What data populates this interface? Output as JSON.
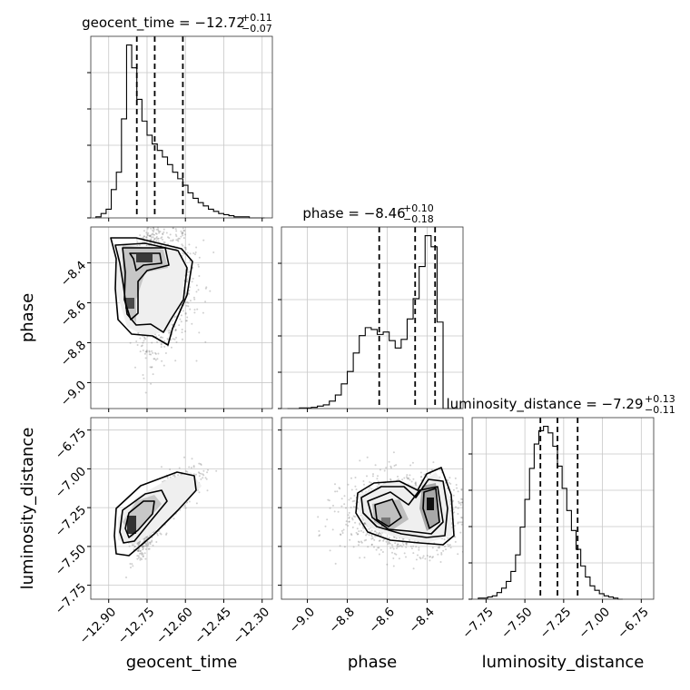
{
  "chart_data": {
    "type": "corner",
    "parameters": [
      "geocent_time",
      "phase",
      "luminosity_distance"
    ],
    "titles": [
      {
        "param": "geocent_time",
        "text": "geocent_time = −12.72",
        "plus": "+0.11",
        "minus": "−0.07"
      },
      {
        "param": "phase",
        "text": "phase = −8.46",
        "plus": "+0.10",
        "minus": "−0.18"
      },
      {
        "param": "luminosity_distance",
        "text": "luminosity_distance = −7.29",
        "plus": "+0.13",
        "minus": "−0.11"
      }
    ],
    "axes": {
      "geocent_time": {
        "range": [
          -12.97,
          -12.26
        ],
        "ticks": [
          -12.9,
          -12.75,
          -12.6,
          -12.45,
          -12.3
        ],
        "tick_labels": [
          "−12.90",
          "−12.75",
          "−12.60",
          "−12.45",
          "−12.30"
        ],
        "label": "geocent_time"
      },
      "phase": {
        "range": [
          -9.13,
          -8.22
        ],
        "ticks": [
          -9.0,
          -8.8,
          -8.6,
          -8.4
        ],
        "tick_labels": [
          "−9.0",
          "−8.8",
          "−8.6",
          "−8.4"
        ],
        "label": "phase"
      },
      "luminosity_distance": {
        "range": [
          -7.84,
          -6.67
        ],
        "ticks": [
          -7.75,
          -7.5,
          -7.25,
          -7.0,
          -6.75
        ],
        "tick_labels": [
          "−7.75",
          "−7.50",
          "−7.25",
          "−7.00",
          "−6.75"
        ],
        "label": "luminosity_distance"
      }
    },
    "quantiles": {
      "geocent_time": [
        -12.79,
        -12.72,
        -12.61
      ],
      "phase": [
        -8.64,
        -8.46,
        -8.36
      ],
      "luminosity_distance": [
        -7.4,
        -7.29,
        -7.16
      ]
    },
    "histograms": {
      "geocent_time": {
        "edges": [
          -12.95,
          -12.93,
          -12.91,
          -12.89,
          -12.87,
          -12.85,
          -12.83,
          -12.81,
          -12.79,
          -12.77,
          -12.75,
          -12.73,
          -12.71,
          -12.69,
          -12.67,
          -12.65,
          -12.63,
          -12.61,
          -12.59,
          -12.57,
          -12.55,
          -12.53,
          -12.51,
          -12.49,
          -12.47,
          -12.45,
          -12.43,
          -12.41,
          -12.39,
          -12.37,
          -12.35,
          -12.33,
          -12.31,
          -12.29
        ],
        "counts": [
          1,
          4,
          8,
          26,
          42,
          91,
          159,
          138,
          109,
          89,
          76,
          68,
          62,
          56,
          49,
          42,
          36,
          30,
          23,
          18,
          14,
          11,
          8,
          6,
          4,
          3,
          2,
          1,
          1,
          1,
          0,
          0,
          0
        ]
      },
      "phase": {
        "edges": [
          -9.1,
          -9.07,
          -9.04,
          -9.01,
          -8.98,
          -8.95,
          -8.92,
          -8.89,
          -8.86,
          -8.83,
          -8.8,
          -8.77,
          -8.74,
          -8.71,
          -8.68,
          -8.65,
          -8.62,
          -8.59,
          -8.56,
          -8.53,
          -8.5,
          -8.47,
          -8.44,
          -8.41,
          -8.38,
          -8.35,
          -8.32,
          -8.29,
          -8.26,
          -8.23
        ],
        "counts": [
          0,
          0,
          1,
          1,
          2,
          4,
          6,
          12,
          22,
          40,
          60,
          90,
          118,
          131,
          128,
          120,
          124,
          110,
          98,
          112,
          145,
          178,
          230,
          280,
          262,
          140,
          0,
          0,
          0
        ]
      },
      "luminosity_distance": {
        "edges": [
          -7.8,
          -7.77,
          -7.74,
          -7.71,
          -7.68,
          -7.65,
          -7.62,
          -7.59,
          -7.56,
          -7.53,
          -7.5,
          -7.47,
          -7.44,
          -7.41,
          -7.38,
          -7.35,
          -7.32,
          -7.29,
          -7.26,
          -7.23,
          -7.2,
          -7.17,
          -7.14,
          -7.11,
          -7.08,
          -7.05,
          -7.02,
          -6.99,
          -6.96,
          -6.93,
          -6.9,
          -6.87
        ],
        "counts": [
          1,
          1,
          2,
          3,
          6,
          10,
          16,
          25,
          40,
          65,
          90,
          118,
          140,
          152,
          156,
          150,
          138,
          120,
          100,
          80,
          62,
          45,
          30,
          20,
          12,
          8,
          5,
          3,
          2,
          1,
          0
        ]
      }
    },
    "pairs": [
      {
        "x": "geocent_time",
        "y": "phase",
        "mean": [
          -12.72,
          -8.5
        ],
        "sd": [
          0.08,
          0.16
        ],
        "corr": 0.05
      },
      {
        "x": "geocent_time",
        "y": "luminosity_distance",
        "mean": [
          -12.72,
          -7.27
        ],
        "sd": [
          0.08,
          0.12
        ],
        "corr": 0.82
      },
      {
        "x": "phase",
        "y": "luminosity_distance",
        "mean": [
          -8.5,
          -7.29
        ],
        "sd": [
          0.16,
          0.12
        ],
        "corr": 0.0
      }
    ],
    "grid": true
  }
}
